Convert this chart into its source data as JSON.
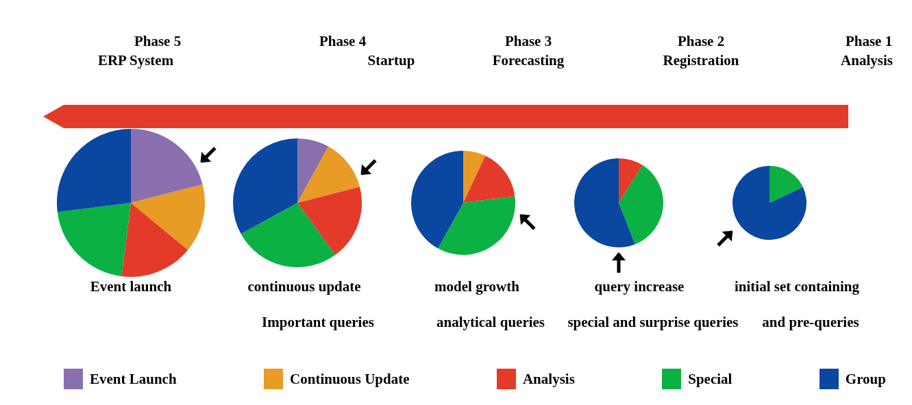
{
  "chart_data": [
    {
      "type": "pie",
      "title": "Phase 5",
      "subtitle": "ERP System",
      "categories": [
        "Event Launch",
        "Continuous Update",
        "Analysis",
        "Special",
        "Group"
      ],
      "values": [
        21,
        15,
        16,
        21,
        27
      ],
      "colors": [
        "#8a6fb0",
        "#e89b25",
        "#e43a2a",
        "#0cb143",
        "#0a47a0"
      ],
      "annotations": [
        "Event launch"
      ],
      "legend": "bottom"
    },
    {
      "type": "pie",
      "title": "Phase 4",
      "subtitle": "Startup",
      "categories": [
        null,
        null,
        null,
        null,
        null
      ],
      "values": [
        8,
        13,
        19,
        27,
        33
      ],
      "colors": [
        "#8a6fb0",
        "#e89b25",
        "#e43a2a",
        "#0cb143",
        "#0a47a0"
      ],
      "annotations": [
        "continuous update",
        "Important queries"
      ]
    },
    {
      "type": "pie",
      "title": "Phase 3",
      "subtitle": "Forecasting",
      "categories": [
        null,
        null,
        null,
        null
      ],
      "values": [
        7,
        16,
        35,
        42
      ],
      "colors": [
        "#e89b25",
        "#e43a2a",
        "#0cb143",
        "#0a47a0"
      ],
      "annotations": [
        "model growth",
        "analytical queries"
      ]
    },
    {
      "type": "pie",
      "title": "Phase 2",
      "subtitle": "Registration",
      "categories": [
        null,
        null,
        null
      ],
      "values": [
        9,
        35,
        56
      ],
      "colors": [
        "#e43a2a",
        "#0cb143",
        "#0a47a0"
      ],
      "annotations": [
        "query increase",
        "special and surprise queries"
      ]
    },
    {
      "type": "pie",
      "title": "Phase 1",
      "subtitle": "Analysis",
      "categories": [
        null,
        null
      ],
      "values": [
        18,
        82
      ],
      "colors": [
        "#0cb143",
        "#0a47a0"
      ],
      "annotations": [
        "initial set containing",
        "and pre-queries"
      ]
    }
  ]
}
